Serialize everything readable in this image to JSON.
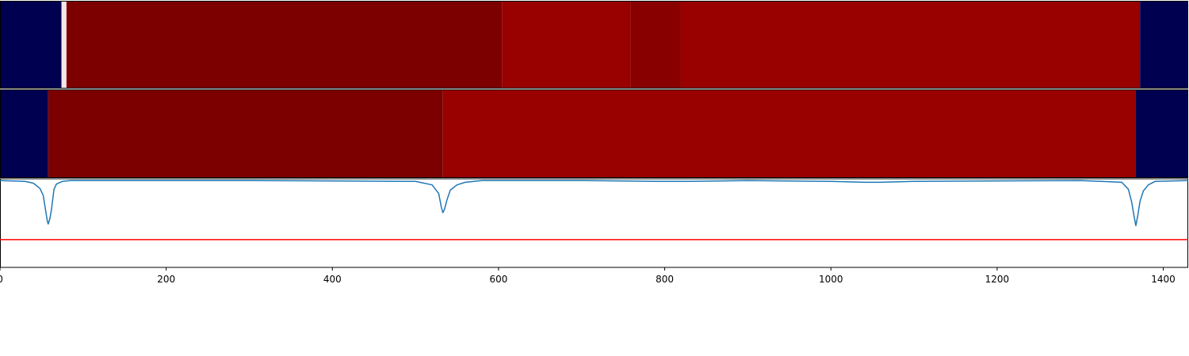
{
  "chart_data": [
    {
      "type": "heatmap",
      "title": "",
      "xlim": [
        0,
        1430
      ],
      "colors": {
        "background": "#000050",
        "dark_red": "#7d0000",
        "red": "#990000",
        "mid_red": "#8a0000",
        "white_mark": "#ffffff"
      },
      "segments": [
        {
          "start": 0,
          "end": 74,
          "color": "#000050"
        },
        {
          "start": 74,
          "end": 80,
          "color": "#f4e6e6"
        },
        {
          "start": 80,
          "end": 604,
          "color": "#7d0000"
        },
        {
          "start": 604,
          "end": 759,
          "color": "#990000"
        },
        {
          "start": 759,
          "end": 819,
          "color": "#880000"
        },
        {
          "start": 819,
          "end": 1372,
          "color": "#990000"
        },
        {
          "start": 1372,
          "end": 1430,
          "color": "#000050"
        }
      ]
    },
    {
      "type": "heatmap",
      "title": "",
      "xlim": [
        0,
        1430
      ],
      "segments": [
        {
          "start": 0,
          "end": 58,
          "color": "#000050"
        },
        {
          "start": 58,
          "end": 533,
          "color": "#7d0000"
        },
        {
          "start": 533,
          "end": 1367,
          "color": "#990000"
        },
        {
          "start": 1367,
          "end": 1430,
          "color": "#000050"
        }
      ]
    },
    {
      "type": "line",
      "title": "",
      "xlim": [
        0,
        1430
      ],
      "ylim": [
        -1.0,
        0.02
      ],
      "threshold": -0.68,
      "line_color": "#1f77b4",
      "threshold_color": "#ff0000",
      "x": [
        0,
        30,
        40,
        48,
        52,
        55,
        57,
        58,
        60,
        62,
        65,
        68,
        75,
        85,
        200,
        300,
        500,
        520,
        528,
        531,
        533,
        535,
        538,
        542,
        550,
        560,
        580,
        700,
        790,
        810,
        830,
        900,
        1000,
        1040,
        1060,
        1100,
        1300,
        1350,
        1358,
        1362,
        1365,
        1367,
        1369,
        1372,
        1376,
        1382,
        1390,
        1430
      ],
      "y": [
        0,
        -0.01,
        -0.03,
        -0.09,
        -0.17,
        -0.35,
        -0.47,
        -0.5,
        -0.44,
        -0.33,
        -0.1,
        -0.04,
        -0.01,
        0,
        0,
        0,
        -0.01,
        -0.05,
        -0.15,
        -0.3,
        -0.37,
        -0.33,
        -0.22,
        -0.11,
        -0.05,
        -0.02,
        0,
        0,
        -0.01,
        -0.01,
        -0.01,
        0,
        -0.01,
        -0.02,
        -0.02,
        -0.01,
        0,
        -0.02,
        -0.1,
        -0.25,
        -0.42,
        -0.52,
        -0.42,
        -0.24,
        -0.12,
        -0.05,
        -0.01,
        0
      ],
      "xticks": [
        0,
        200,
        400,
        600,
        800,
        1000,
        1200,
        1400
      ],
      "xtick_labels": [
        "0",
        "200",
        "400",
        "600",
        "800",
        "1000",
        "1200",
        "1400"
      ]
    }
  ]
}
